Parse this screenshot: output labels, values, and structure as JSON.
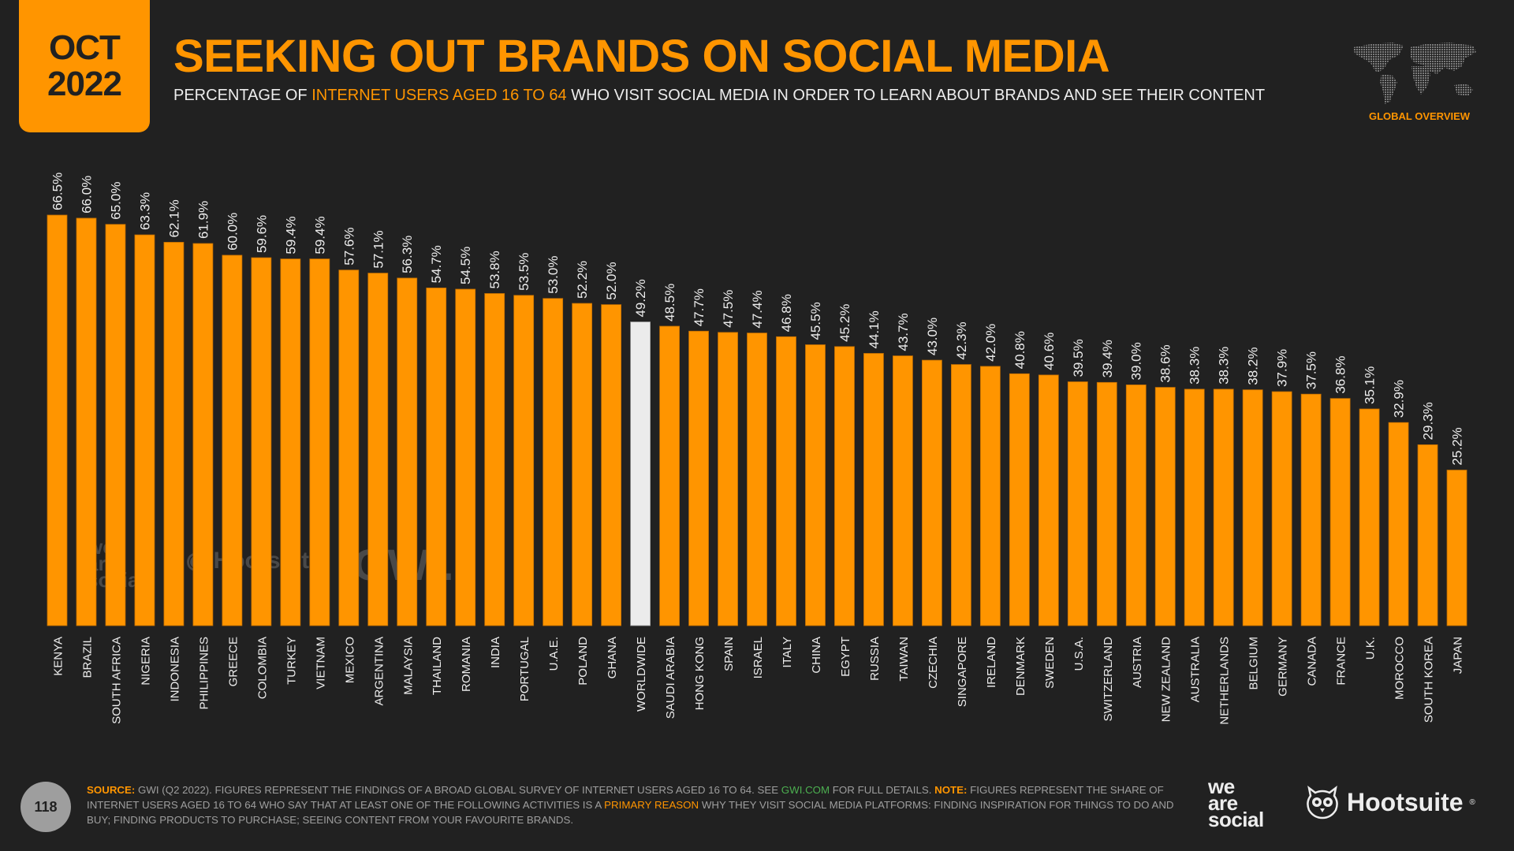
{
  "header": {
    "date_month": "OCT",
    "date_year": "2022",
    "title": "SEEKING OUT BRANDS ON SOCIAL MEDIA",
    "subtitle_pre": "PERCENTAGE OF ",
    "subtitle_highlight": "INTERNET USERS AGED 16 TO 64",
    "subtitle_post": " WHO VISIT SOCIAL MEDIA IN ORDER TO LEARN ABOUT BRANDS AND SEE THEIR CONTENT",
    "section_label": "GLOBAL OVERVIEW",
    "globe_icon": "world-map-icon"
  },
  "watermarks": {
    "we_are_social": [
      "we",
      "are",
      "social"
    ],
    "hootsuite": "Hootsuite",
    "gwi": "GWI."
  },
  "colors": {
    "background": "#212121",
    "accent": "#FF9500",
    "highlight_bar": "#EBEBEB",
    "label_text": "#EDEDED",
    "footer_text": "#9E9E9E",
    "link": "#4CAF50"
  },
  "chart_data": {
    "type": "bar",
    "title": "SEEKING OUT BRANDS ON SOCIAL MEDIA",
    "xlabel": "",
    "ylabel": "",
    "ylim": [
      0,
      70
    ],
    "grid": false,
    "legend": "none",
    "value_format": "percent-1dp",
    "highlight_category": "WORLDWIDE",
    "categories": [
      "KENYA",
      "BRAZIL",
      "SOUTH AFRICA",
      "NIGERIA",
      "INDONESIA",
      "PHILIPPINES",
      "GREECE",
      "COLOMBIA",
      "TURKEY",
      "VIETNAM",
      "MEXICO",
      "ARGENTINA",
      "MALAYSIA",
      "THAILAND",
      "ROMANIA",
      "INDIA",
      "PORTUGAL",
      "U.A.E.",
      "POLAND",
      "GHANA",
      "WORLDWIDE",
      "SAUDI ARABIA",
      "HONG KONG",
      "SPAIN",
      "ISRAEL",
      "ITALY",
      "CHINA",
      "EGYPT",
      "RUSSIA",
      "TAIWAN",
      "CZECHIA",
      "SINGAPORE",
      "IRELAND",
      "DENMARK",
      "SWEDEN",
      "U.S.A.",
      "SWITZERLAND",
      "AUSTRIA",
      "NEW ZEALAND",
      "AUSTRALIA",
      "NETHERLANDS",
      "BELGIUM",
      "GERMANY",
      "CANADA",
      "FRANCE",
      "U.K.",
      "MOROCCO",
      "SOUTH KOREA",
      "JAPAN"
    ],
    "values": [
      66.5,
      66.0,
      65.0,
      63.3,
      62.1,
      61.9,
      60.0,
      59.6,
      59.4,
      59.4,
      57.6,
      57.1,
      56.3,
      54.7,
      54.5,
      53.8,
      53.5,
      53.0,
      52.2,
      52.0,
      49.2,
      48.5,
      47.7,
      47.5,
      47.4,
      46.8,
      45.5,
      45.2,
      44.1,
      43.7,
      43.0,
      42.3,
      42.0,
      40.8,
      40.6,
      39.5,
      39.4,
      39.0,
      38.6,
      38.3,
      38.3,
      38.2,
      37.9,
      37.5,
      36.8,
      35.1,
      32.9,
      29.3,
      25.2
    ],
    "labels": [
      "66.5%",
      "66.0%",
      "65.0%",
      "63.3%",
      "62.1%",
      "61.9%",
      "60.0%",
      "59.6%",
      "59.4%",
      "59.4%",
      "57.6%",
      "57.1%",
      "56.3%",
      "54.7%",
      "54.5%",
      "53.8%",
      "53.5%",
      "53.0%",
      "52.2%",
      "52.0%",
      "49.2%",
      "48.5%",
      "47.7%",
      "47.5%",
      "47.4%",
      "46.8%",
      "45.5%",
      "45.2%",
      "44.1%",
      "43.7%",
      "43.0%",
      "42.3%",
      "42.0%",
      "40.8%",
      "40.6%",
      "39.5%",
      "39.4%",
      "39.0%",
      "38.6%",
      "38.3%",
      "38.3%",
      "38.2%",
      "37.9%",
      "37.5%",
      "36.8%",
      "35.1%",
      "32.9%",
      "29.3%",
      "25.2%"
    ]
  },
  "footer": {
    "page_number": "118",
    "source_label": "SOURCE:",
    "source_text_1": " GWI (Q2 2022). FIGURES REPRESENT THE FINDINGS OF A BROAD GLOBAL SURVEY OF INTERNET USERS AGED 16 TO 64. SEE ",
    "source_link": "GWI.COM",
    "source_text_2": " FOR FULL DETAILS. ",
    "note_label": "NOTE:",
    "note_text_1": " FIGURES REPRESENT THE SHARE OF INTERNET USERS AGED 16 TO 64 WHO SAY THAT AT LEAST ONE OF THE FOLLOWING ACTIVITIES IS A ",
    "note_highlight": "PRIMARY REASON",
    "note_text_2": " WHY THEY VISIT SOCIAL MEDIA PLATFORMS: FINDING INSPIRATION FOR THINGS TO DO AND BUY; FINDING PRODUCTS TO PURCHASE; SEEING CONTENT FROM YOUR FAVOURITE BRANDS.",
    "logo_we_are_social": [
      "we",
      "are",
      "social"
    ],
    "logo_hootsuite": "Hootsuite",
    "logo_hootsuite_reg": "®"
  }
}
